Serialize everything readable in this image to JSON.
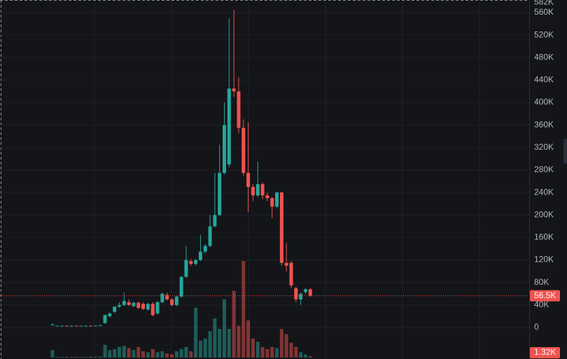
{
  "chart_data": {
    "type": "candlestick",
    "open": [
      4500,
      3000,
      3000,
      3200,
      3000,
      3100,
      3000,
      3000,
      3200,
      3000,
      3500,
      8000,
      20000,
      28000,
      37000,
      40000,
      45000,
      38000,
      44000,
      42000,
      32000,
      42000,
      25000,
      45000,
      58000,
      50000,
      40000,
      55000,
      90000,
      118000,
      113000,
      120000,
      135000,
      145000,
      180000,
      200000,
      275000,
      290000,
      425000,
      420000,
      355000,
      275000,
      250000,
      235000,
      255000,
      235000,
      230000,
      215000,
      240000,
      115000,
      115000,
      70000,
      50000,
      63000,
      68000
    ],
    "high": [
      8000,
      3500,
      3600,
      3700,
      3500,
      3600,
      3500,
      3500,
      3700,
      3600,
      5000,
      23000,
      27000,
      38000,
      45000,
      62000,
      50000,
      46000,
      46000,
      45000,
      44000,
      45000,
      47000,
      62000,
      62000,
      52000,
      57000,
      92000,
      145000,
      122000,
      122000,
      165000,
      148000,
      200000,
      275000,
      325000,
      400000,
      550000,
      565000,
      445000,
      370000,
      365000,
      255000,
      295000,
      258000,
      240000,
      232000,
      242000,
      242000,
      150000,
      118000,
      72000,
      62000,
      70000,
      70000
    ],
    "low": [
      4000,
      2800,
      2800,
      3000,
      2800,
      2900,
      2800,
      2800,
      3000,
      2800,
      3000,
      7000,
      18000,
      26000,
      35000,
      38000,
      38000,
      36000,
      33000,
      31000,
      30000,
      20000,
      23000,
      43000,
      48000,
      38000,
      38000,
      53000,
      88000,
      110000,
      110000,
      118000,
      132000,
      143000,
      178000,
      198000,
      272000,
      285000,
      410000,
      345000,
      270000,
      205000,
      225000,
      232000,
      228000,
      225000,
      195000,
      212000,
      110000,
      100000,
      70000,
      45000,
      40000,
      60000,
      54000
    ],
    "close": [
      5000,
      3000,
      3200,
      3000,
      3100,
      3000,
      3000,
      3200,
      3000,
      3500,
      4000,
      22000,
      25000,
      37000,
      40000,
      47000,
      40000,
      44000,
      35000,
      33000,
      42000,
      22000,
      45000,
      60000,
      50000,
      40000,
      55000,
      90000,
      120000,
      113000,
      120000,
      135000,
      145000,
      180000,
      200000,
      275000,
      360000,
      425000,
      420000,
      355000,
      275000,
      250000,
      235000,
      255000,
      235000,
      230000,
      215000,
      240000,
      115000,
      110000,
      75000,
      50000,
      60000,
      68000,
      56500
    ],
    "volume": [
      7000,
      600,
      700,
      800,
      600,
      700,
      600,
      700,
      900,
      800,
      1000,
      12000,
      7000,
      8000,
      10000,
      11000,
      9000,
      7000,
      10000,
      6000,
      5000,
      8000,
      5000,
      6000,
      4000,
      3000,
      6000,
      8000,
      10000,
      6000,
      47000,
      16000,
      18000,
      25000,
      37000,
      27000,
      55000,
      27000,
      63000,
      30000,
      91000,
      35000,
      18000,
      15000,
      10000,
      8000,
      10000,
      9000,
      27000,
      22000,
      14000,
      10000,
      5000,
      3000,
      1320
    ],
    "last_price_label": "56.5K",
    "last_volume_label": "1.32K",
    "up_color": "#26a69a",
    "down_color": "#ef5350",
    "ylim": [
      -56000,
      582400
    ],
    "yticks": [
      {
        "value": 0,
        "label": "0"
      },
      {
        "value": 40000,
        "label": "40K"
      },
      {
        "value": 80000,
        "label": "80K"
      },
      {
        "value": 120000,
        "label": "120K"
      },
      {
        "value": 160000,
        "label": "160K"
      },
      {
        "value": 200000,
        "label": "200K"
      },
      {
        "value": 240000,
        "label": "240K"
      },
      {
        "value": 280000,
        "label": "280K"
      },
      {
        "value": 320000,
        "label": "320K"
      },
      {
        "value": 360000,
        "label": "360K"
      },
      {
        "value": 400000,
        "label": "400K"
      },
      {
        "value": 440000,
        "label": "440K"
      },
      {
        "value": 480000,
        "label": "480K"
      },
      {
        "value": 520000,
        "label": "520K"
      },
      {
        "value": 560000,
        "label": "560K"
      }
    ],
    "top_label": {
      "value": 582000,
      "label": "582K"
    },
    "grid": true
  }
}
